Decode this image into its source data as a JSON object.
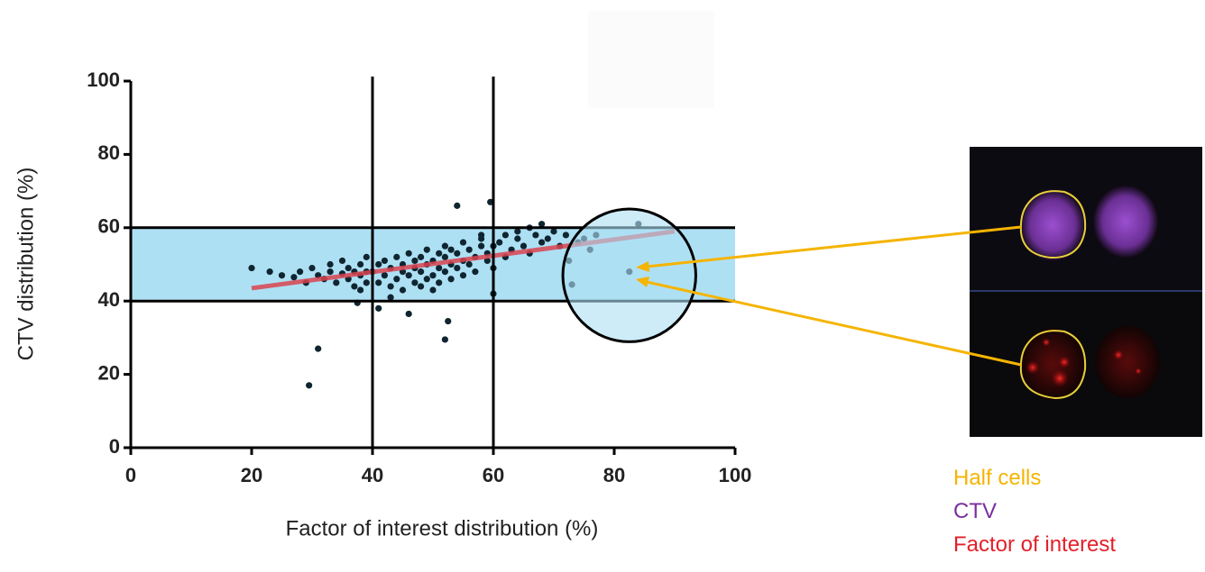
{
  "chart_data": {
    "type": "scatter",
    "xlabel": "Factor of interest distribution (%)",
    "ylabel": "CTV distribution (%)",
    "xlim": [
      0,
      100
    ],
    "ylim": [
      0,
      100
    ],
    "xticks": [
      0,
      20,
      40,
      60,
      80,
      100
    ],
    "yticks": [
      0,
      20,
      40,
      60,
      80,
      100
    ],
    "color": "#0f2530",
    "band": {
      "y": [
        40,
        60
      ],
      "color": "#aee0f4"
    },
    "vlines": [
      40,
      60
    ],
    "hlines": [
      40,
      60
    ],
    "trend": {
      "x": [
        20,
        90
      ],
      "y": [
        43.5,
        59
      ],
      "color": "#d9434f"
    },
    "highlight": {
      "x": 82.5,
      "y": 47,
      "radius": 11
    },
    "x": [
      20,
      23,
      25,
      27,
      28,
      29,
      30,
      31,
      32,
      33,
      33,
      34,
      35,
      35,
      36,
      36,
      37,
      37,
      38,
      38,
      38,
      39,
      39,
      39,
      40,
      41,
      41,
      42,
      42,
      43,
      43,
      44,
      44,
      45,
      45,
      45,
      46,
      46,
      47,
      47,
      47,
      48,
      48,
      48,
      49,
      49,
      49,
      50,
      50,
      50,
      51,
      51,
      51,
      52,
      52,
      52,
      53,
      53,
      53,
      54,
      54,
      55,
      55,
      55,
      56,
      56,
      57,
      57,
      58,
      58,
      59,
      59,
      60,
      60,
      61,
      62,
      62,
      63,
      64,
      64,
      65,
      66,
      66,
      67,
      68,
      68,
      69,
      70,
      71,
      72,
      73,
      74,
      75,
      76,
      77,
      60,
      58,
      43,
      29.5,
      31,
      52,
      52.5,
      46,
      54,
      59.5,
      41,
      37.5,
      84,
      82.5,
      72.5
    ],
    "y": [
      49,
      48,
      47,
      46.5,
      48,
      45,
      49,
      47,
      46,
      48,
      50,
      45,
      47.5,
      51,
      46,
      49,
      44,
      48,
      47,
      50,
      43,
      45,
      52,
      48,
      48,
      45,
      50,
      47,
      51,
      44,
      49,
      46,
      52,
      48,
      43,
      50,
      47,
      53,
      45,
      49,
      51,
      44,
      48,
      52,
      46,
      50,
      54,
      47,
      43,
      51,
      49,
      53,
      45,
      48,
      52,
      55,
      46,
      50,
      54,
      49,
      53,
      47,
      51,
      56,
      50,
      54,
      48,
      52,
      55,
      57,
      51,
      53,
      49,
      55,
      56,
      52,
      58,
      54,
      57,
      59,
      55,
      60,
      53,
      58,
      61,
      56,
      57,
      59,
      55,
      58,
      44.5,
      56,
      57,
      54,
      58,
      42,
      58,
      41,
      17,
      27,
      29.5,
      34.5,
      36.5,
      66,
      67,
      38,
      39.5,
      61,
      48,
      51
    ]
  },
  "annotations": [
    {
      "text": "Half cells",
      "color": "#f5b400"
    },
    {
      "text": "CTV",
      "color": "#7b2f9e"
    },
    {
      "text": "Factor of interest",
      "color": "#e3202a"
    }
  ]
}
